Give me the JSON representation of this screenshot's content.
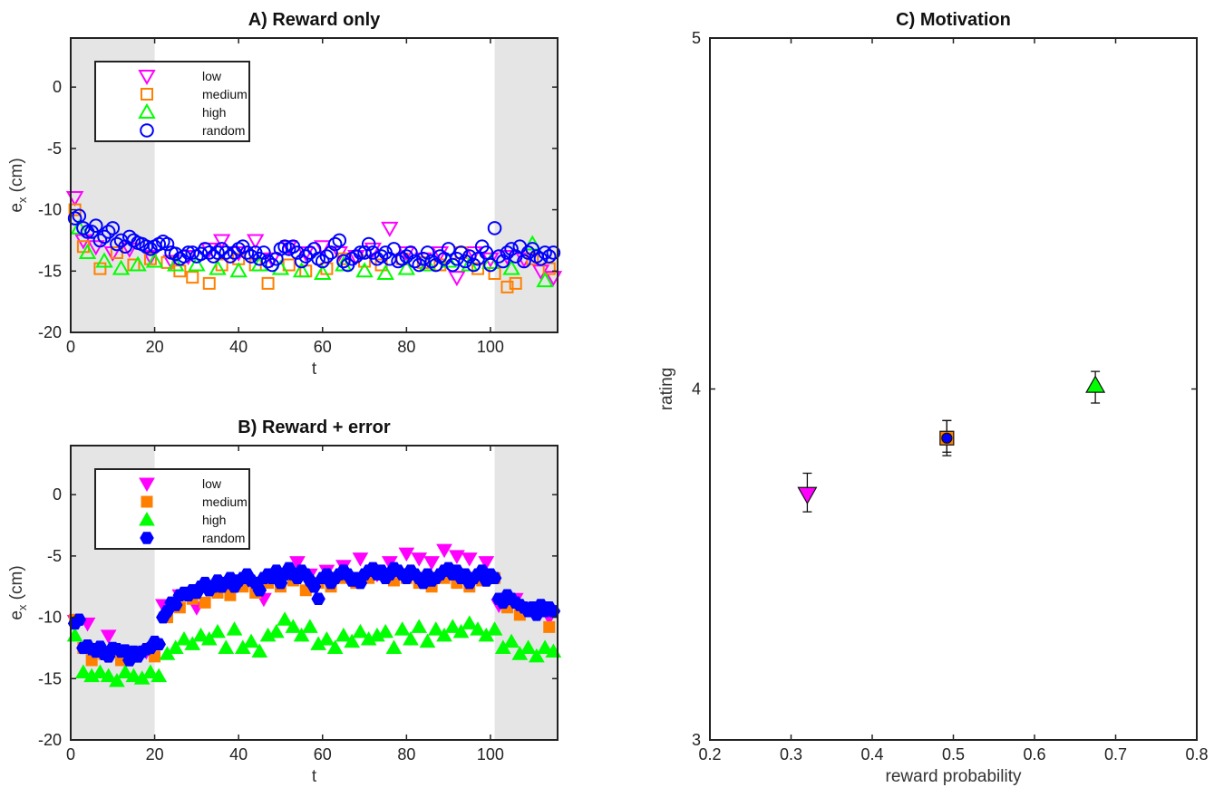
{
  "chart_data": [
    {
      "type": "scatter",
      "title": "A) Reward only",
      "xlabel": "t",
      "ylabel_base": "e",
      "ylabel_sub": "x",
      "ylabel_unit": " (cm)",
      "xlim": [
        0,
        116
      ],
      "ylim": [
        -20,
        4
      ],
      "xticks": [
        0,
        20,
        40,
        60,
        80,
        100
      ],
      "yticks": [
        -20,
        -15,
        -10,
        -5,
        0
      ],
      "shaded_regions": [
        [
          0,
          20
        ],
        [
          101,
          116
        ]
      ],
      "legend_position": "top-left",
      "marker_fill": "none",
      "series": [
        {
          "name": "low",
          "marker": "triangle-down",
          "color": "#ff00ff",
          "x": [
            1,
            3,
            6,
            10,
            14,
            19,
            24,
            28,
            33,
            36,
            40,
            44,
            48,
            52,
            56,
            60,
            64,
            68,
            72,
            76,
            80,
            84,
            88,
            92,
            96,
            100,
            104,
            108,
            112,
            115
          ],
          "y": [
            -9,
            -12.5,
            -13,
            -13.5,
            -13.2,
            -13.8,
            -14.2,
            -13.8,
            -13.2,
            -12.5,
            -13.5,
            -12.5,
            -14,
            -13,
            -13.5,
            -13,
            -13.5,
            -13.8,
            -13.2,
            -11.5,
            -13.5,
            -14,
            -13.5,
            -15.5,
            -13.5,
            -14,
            -13.8,
            -14,
            -15,
            -15.5
          ]
        },
        {
          "name": "medium",
          "marker": "square",
          "color": "#ff8000",
          "x": [
            1,
            3,
            7,
            11,
            15,
            19,
            23,
            26,
            29,
            33,
            36,
            40,
            44,
            47,
            52,
            56,
            61,
            65,
            70,
            74,
            79,
            84,
            88,
            93,
            97,
            101,
            104,
            106,
            110,
            114
          ],
          "y": [
            -10,
            -13,
            -14.8,
            -13.5,
            -14.5,
            -14,
            -14.3,
            -15,
            -15.5,
            -16,
            -14.5,
            -14,
            -14.5,
            -16,
            -14.5,
            -15,
            -14.8,
            -14,
            -14.2,
            -14.5,
            -14,
            -14.3,
            -14.5,
            -13.5,
            -14.8,
            -15.2,
            -16.3,
            -16,
            -14,
            -14.8
          ]
        },
        {
          "name": "high",
          "marker": "triangle-up",
          "color": "#00ff00",
          "x": [
            2,
            4,
            8,
            12,
            16,
            20,
            25,
            30,
            35,
            40,
            45,
            50,
            55,
            60,
            65,
            70,
            75,
            80,
            85,
            90,
            95,
            100,
            105,
            110,
            113
          ],
          "y": [
            -11.5,
            -13.5,
            -14.2,
            -14.8,
            -14.5,
            -14.2,
            -14.5,
            -14.5,
            -14.8,
            -15,
            -14.5,
            -14.8,
            -15,
            -15.2,
            -14.5,
            -15,
            -15.2,
            -14.8,
            -14.5,
            -14.2,
            -14.5,
            -14.3,
            -14.8,
            -12.8,
            -15.8
          ]
        },
        {
          "name": "random",
          "marker": "circle",
          "color": "#0000ff",
          "x": [
            1,
            2,
            3,
            4,
            5,
            6,
            7,
            8,
            9,
            10,
            11,
            12,
            13,
            14,
            15,
            16,
            17,
            18,
            19,
            20,
            21,
            22,
            23,
            24,
            25,
            26,
            27,
            28,
            29,
            30,
            31,
            32,
            33,
            34,
            35,
            36,
            37,
            38,
            39,
            40,
            41,
            42,
            43,
            44,
            45,
            46,
            47,
            48,
            49,
            50,
            51,
            52,
            53,
            54,
            55,
            56,
            57,
            58,
            59,
            60,
            61,
            62,
            63,
            64,
            65,
            66,
            67,
            68,
            69,
            70,
            71,
            72,
            73,
            74,
            75,
            76,
            77,
            78,
            79,
            80,
            81,
            82,
            83,
            84,
            85,
            86,
            87,
            88,
            89,
            90,
            91,
            92,
            93,
            94,
            95,
            96,
            97,
            98,
            99,
            100,
            101,
            102,
            103,
            104,
            105,
            106,
            107,
            108,
            109,
            110,
            111,
            112,
            113,
            114,
            115
          ],
          "y": [
            -10.7,
            -10.5,
            -11.5,
            -11.8,
            -11.8,
            -11.3,
            -12.5,
            -12.2,
            -11.8,
            -11.5,
            -12.8,
            -12.5,
            -13,
            -12.2,
            -12.5,
            -12.7,
            -12.8,
            -13,
            -13.2,
            -13,
            -12.8,
            -12.6,
            -12.8,
            -13.5,
            -13.6,
            -14,
            -13.8,
            -13.5,
            -13.5,
            -13.8,
            -13.6,
            -13.2,
            -13.5,
            -13.8,
            -13.5,
            -13.2,
            -13.5,
            -13.8,
            -13.5,
            -13.2,
            -13,
            -13.5,
            -13.8,
            -13.5,
            -14,
            -13.5,
            -14.2,
            -14.5,
            -14,
            -13.2,
            -13,
            -13.2,
            -13,
            -13.5,
            -14.2,
            -13.8,
            -13.5,
            -13.2,
            -14,
            -14.2,
            -13.8,
            -13.5,
            -12.8,
            -12.5,
            -14.2,
            -14.5,
            -14,
            -13.8,
            -13.5,
            -13.5,
            -12.8,
            -13.5,
            -14,
            -13.8,
            -13.5,
            -14,
            -13.2,
            -14.2,
            -14,
            -13.8,
            -13.5,
            -14.2,
            -14.5,
            -14,
            -13.5,
            -14.2,
            -14.5,
            -13.8,
            -14,
            -13.2,
            -14.5,
            -14,
            -13.5,
            -14.2,
            -13.8,
            -14.5,
            -14,
            -13,
            -13.5,
            -14.5,
            -11.5,
            -13.8,
            -14.2,
            -13.5,
            -13.2,
            -13.8,
            -13,
            -14.2,
            -13.5,
            -13.2,
            -13.8,
            -14,
            -13.5,
            -13.8,
            -13.5
          ]
        }
      ]
    },
    {
      "type": "scatter",
      "title": "B) Reward + error",
      "xlabel": "t",
      "ylabel_base": "e",
      "ylabel_sub": "x",
      "ylabel_unit": " (cm)",
      "xlim": [
        0,
        116
      ],
      "ylim": [
        -20,
        4
      ],
      "xticks": [
        0,
        20,
        40,
        60,
        80,
        100
      ],
      "yticks": [
        -20,
        -15,
        -10,
        -5,
        0
      ],
      "shaded_regions": [
        [
          0,
          20
        ],
        [
          101,
          116
        ]
      ],
      "legend_position": "top-left",
      "marker_fill": "solid",
      "series": [
        {
          "name": "low",
          "marker": "triangle-down",
          "color": "#ff00ff",
          "x": [
            1,
            4,
            9,
            13,
            18,
            22,
            26,
            30,
            34,
            38,
            42,
            46,
            50,
            54,
            57,
            61,
            65,
            69,
            73,
            76,
            80,
            83,
            86,
            89,
            92,
            95,
            99,
            102,
            106,
            110,
            114
          ],
          "y": [
            -10.3,
            -10.5,
            -11.5,
            -13.5,
            -12.8,
            -9,
            -8.2,
            -9.2,
            -7.8,
            -8,
            -7.2,
            -8.5,
            -6.5,
            -5.5,
            -6.5,
            -6.2,
            -5.8,
            -5.2,
            -6.5,
            -5.5,
            -4.8,
            -5.2,
            -5.5,
            -4.5,
            -5,
            -5.2,
            -5.5,
            -9,
            -8.5,
            -9.5,
            -10
          ]
        },
        {
          "name": "medium",
          "marker": "square",
          "color": "#ff8000",
          "x": [
            1,
            3,
            5,
            8,
            12,
            16,
            20,
            23,
            26,
            29,
            32,
            35,
            38,
            41,
            44,
            47,
            50,
            53,
            56,
            59,
            62,
            65,
            68,
            71,
            74,
            77,
            80,
            83,
            86,
            89,
            92,
            95,
            98,
            101,
            104,
            107,
            110,
            114
          ],
          "y": [
            -10.2,
            -12.5,
            -13.5,
            -13,
            -13.5,
            -12.8,
            -13.2,
            -10,
            -9.2,
            -8.5,
            -8.8,
            -8,
            -8.2,
            -7.5,
            -8,
            -7.2,
            -7.5,
            -7,
            -7.8,
            -7.2,
            -7.5,
            -6.8,
            -7.2,
            -6.8,
            -6.5,
            -7,
            -6.8,
            -7.2,
            -7.5,
            -6.8,
            -7.2,
            -7.5,
            -7,
            -6.8,
            -9.2,
            -9.8,
            -9.5,
            -10.8
          ]
        },
        {
          "name": "high",
          "marker": "triangle-up",
          "color": "#00ff00",
          "x": [
            1,
            3,
            5,
            7,
            9,
            11,
            13,
            15,
            17,
            19,
            21,
            23,
            25,
            27,
            29,
            31,
            33,
            35,
            37,
            39,
            41,
            43,
            45,
            47,
            49,
            51,
            53,
            55,
            57,
            59,
            61,
            63,
            65,
            67,
            69,
            71,
            73,
            75,
            77,
            79,
            81,
            83,
            85,
            87,
            89,
            91,
            93,
            95,
            97,
            99,
            101,
            103,
            105,
            107,
            109,
            111,
            113,
            115
          ],
          "y": [
            -11.5,
            -14.5,
            -14.8,
            -14.5,
            -14.8,
            -15.2,
            -14.5,
            -14.8,
            -15,
            -14.5,
            -14.8,
            -13,
            -12.5,
            -11.8,
            -12.2,
            -11.5,
            -11.8,
            -11.2,
            -12.5,
            -11,
            -12.5,
            -12,
            -12.8,
            -11.5,
            -11.2,
            -10.2,
            -10.8,
            -11.5,
            -10.8,
            -12.2,
            -11.8,
            -12.5,
            -11.5,
            -12,
            -11.2,
            -11.8,
            -11.5,
            -11.2,
            -12.5,
            -11,
            -11.8,
            -10.8,
            -12,
            -11,
            -11.5,
            -10.8,
            -11.2,
            -10.5,
            -11,
            -11.5,
            -11,
            -12.5,
            -12,
            -13,
            -12.5,
            -13.2,
            -12.5,
            -12.8
          ]
        },
        {
          "name": "random",
          "marker": "hexagon",
          "color": "#0000ff",
          "x": [
            1,
            2,
            3,
            4,
            5,
            6,
            7,
            8,
            9,
            10,
            11,
            12,
            13,
            14,
            15,
            16,
            17,
            18,
            19,
            20,
            21,
            22,
            23,
            24,
            25,
            26,
            27,
            28,
            29,
            30,
            31,
            32,
            33,
            34,
            35,
            36,
            37,
            38,
            39,
            40,
            41,
            42,
            43,
            44,
            45,
            46,
            47,
            48,
            49,
            50,
            51,
            52,
            53,
            54,
            55,
            56,
            57,
            58,
            59,
            60,
            61,
            62,
            63,
            64,
            65,
            66,
            67,
            68,
            69,
            70,
            71,
            72,
            73,
            74,
            75,
            76,
            77,
            78,
            79,
            80,
            81,
            82,
            83,
            84,
            85,
            86,
            87,
            88,
            89,
            90,
            91,
            92,
            93,
            94,
            95,
            96,
            97,
            98,
            99,
            100,
            101,
            102,
            103,
            104,
            105,
            106,
            107,
            108,
            109,
            110,
            111,
            112,
            113,
            114,
            115
          ],
          "y": [
            -10.5,
            -10.2,
            -12.5,
            -12.3,
            -12.6,
            -12.8,
            -12.4,
            -13,
            -13.2,
            -12.5,
            -12.6,
            -12.8,
            -12.7,
            -13.5,
            -12.8,
            -13.2,
            -12.8,
            -12.6,
            -12.5,
            -12,
            -12.2,
            -10,
            -9.5,
            -8.8,
            -9,
            -8.2,
            -8,
            -8.2,
            -7.8,
            -8,
            -7.5,
            -7.2,
            -7.8,
            -7.5,
            -7,
            -7.5,
            -7.2,
            -6.8,
            -7.5,
            -7,
            -6.8,
            -6.5,
            -7,
            -7.2,
            -7.8,
            -6.8,
            -6.5,
            -6.8,
            -6.2,
            -7.2,
            -6.5,
            -6,
            -6.5,
            -6.8,
            -6.2,
            -6.5,
            -7,
            -7.5,
            -8.5,
            -6.8,
            -6.5,
            -7.2,
            -6.8,
            -6.5,
            -6.2,
            -6.5,
            -7,
            -6.8,
            -7.2,
            -6.5,
            -6.2,
            -6,
            -6.5,
            -6.2,
            -6.8,
            -6.5,
            -6,
            -6.2,
            -6.5,
            -6.8,
            -6.2,
            -6.5,
            -6.8,
            -7.2,
            -6.5,
            -7,
            -6.8,
            -6.5,
            -6.2,
            -6,
            -6.5,
            -6.2,
            -6.8,
            -6.5,
            -7.2,
            -6.8,
            -6.5,
            -6.2,
            -7,
            -6.5,
            -6.8,
            -8.5,
            -8.8,
            -8.2,
            -8.5,
            -8.8,
            -9,
            -9.2,
            -9.5,
            -9.2,
            -9.8,
            -9,
            -9.5,
            -9.2,
            -9.5
          ]
        }
      ]
    },
    {
      "type": "scatter",
      "title": "C) Motivation",
      "xlabel": "reward probability",
      "ylabel": "rating",
      "xlim": [
        0.2,
        0.8
      ],
      "ylim": [
        3,
        5
      ],
      "xticks": [
        "0.2",
        "0.3",
        "0.4",
        "0.5",
        "0.6",
        "0.7",
        "0.8"
      ],
      "yticks": [
        "3",
        "4",
        "5"
      ],
      "series": [
        {
          "name": "low",
          "marker": "triangle-down",
          "color": "#ff00ff",
          "x": 0.32,
          "y": 3.7,
          "err_low": 0.05,
          "err_high": 0.06
        },
        {
          "name": "medium",
          "marker": "square",
          "color": "#ff8000",
          "x": 0.492,
          "y": 3.86,
          "err_low": 0.05,
          "err_high": 0.05
        },
        {
          "name": "random",
          "marker": "circle",
          "color": "#0000ff",
          "x": 0.492,
          "y": 3.86,
          "err_low": 0.04,
          "err_high": 0.05
        },
        {
          "name": "high",
          "marker": "triangle-up",
          "color": "#00ff00",
          "x": 0.675,
          "y": 4.01,
          "err_low": 0.05,
          "err_high": 0.04
        }
      ]
    }
  ]
}
